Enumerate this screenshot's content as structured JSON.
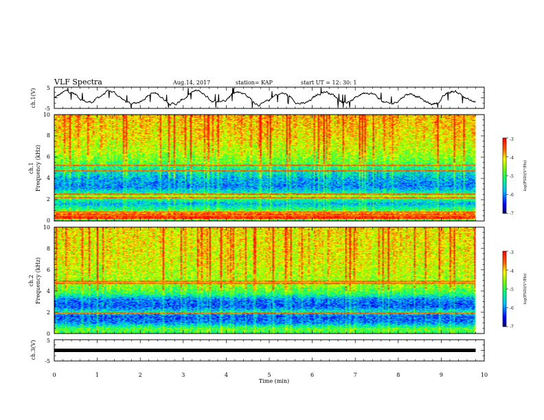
{
  "header": {
    "title": "VLF Spectra",
    "date": "Aug.14, 2017",
    "station": "station= KAP",
    "start": "start UT =  12: 30: 1"
  },
  "chart_data": [
    {
      "type": "line",
      "panel": "ch1-waveform",
      "ylabel": "ch.1(V)",
      "ylim": [
        -5,
        5
      ],
      "yticks": [
        "5",
        "-5"
      ],
      "xlim": [
        0,
        10
      ],
      "series": [
        {
          "x_range": [
            0,
            9.8
          ],
          "approx_level_V": [
            -1.5,
            1.5
          ]
        }
      ]
    },
    {
      "type": "heatmap",
      "panel": "ch1-spectrogram",
      "ylabel_line1": "ch.1",
      "ylabel_line2": "Frequency (kHz)",
      "ylim": [
        0,
        10
      ],
      "yticks": [
        "0",
        "2",
        "4",
        "6",
        "8",
        "10"
      ],
      "xlim": [
        0,
        10
      ],
      "data_x_range": [
        0,
        9.8
      ],
      "colorbar": {
        "label": "log(PSD)(V²/Hz)",
        "ticks": [
          "-3",
          "-4",
          "-5",
          "-6",
          "-7"
        ],
        "range": [
          -7,
          -3
        ]
      },
      "frequency_profile_logPSD": [
        {
          "f": 0.0,
          "v": -5.8
        },
        {
          "f": 0.2,
          "v": -3.2
        },
        {
          "f": 0.6,
          "v": -3.4
        },
        {
          "f": 1.0,
          "v": -5.0
        },
        {
          "f": 1.6,
          "v": -5.8
        },
        {
          "f": 2.0,
          "v": -5.2
        },
        {
          "f": 2.3,
          "v": -4.4
        },
        {
          "f": 2.6,
          "v": -5.3
        },
        {
          "f": 3.2,
          "v": -6.0
        },
        {
          "f": 4.0,
          "v": -5.8
        },
        {
          "f": 5.0,
          "v": -5.2
        },
        {
          "f": 5.5,
          "v": -4.8
        },
        {
          "f": 6.5,
          "v": -4.4
        },
        {
          "f": 8.0,
          "v": -4.1
        },
        {
          "f": 10.0,
          "v": -3.9
        }
      ],
      "lines_kHz": [
        0.5,
        0.8,
        2.2,
        2.5,
        4.7,
        5.2
      ]
    },
    {
      "type": "heatmap",
      "panel": "ch2-spectrogram",
      "ylabel_line1": "ch.2",
      "ylabel_line2": "Frequency (kHz)",
      "ylim": [
        0,
        10
      ],
      "yticks": [
        "0",
        "2",
        "4",
        "6",
        "8",
        "10"
      ],
      "xlim": [
        0,
        10
      ],
      "data_x_range": [
        0,
        9.8
      ],
      "colorbar": {
        "label": "log(PSD)(V²/Hz)",
        "ticks": [
          "-3",
          "-4",
          "-5",
          "-6",
          "-7"
        ],
        "range": [
          -7,
          -3
        ]
      },
      "frequency_profile_logPSD": [
        {
          "f": 0.0,
          "v": -5.0
        },
        {
          "f": 0.4,
          "v": -4.8
        },
        {
          "f": 1.0,
          "v": -6.0
        },
        {
          "f": 1.6,
          "v": -6.2
        },
        {
          "f": 2.0,
          "v": -5.4
        },
        {
          "f": 2.5,
          "v": -6.2
        },
        {
          "f": 3.2,
          "v": -6.0
        },
        {
          "f": 3.8,
          "v": -5.0
        },
        {
          "f": 4.5,
          "v": -4.6
        },
        {
          "f": 5.5,
          "v": -4.4
        },
        {
          "f": 7.0,
          "v": -4.2
        },
        {
          "f": 10.0,
          "v": -4.1
        }
      ],
      "lines_kHz": [
        1.9,
        4.7,
        4.9
      ]
    },
    {
      "type": "line",
      "panel": "ch3-waveform",
      "ylabel": "ch.3(V)",
      "ylim": [
        -5,
        5
      ],
      "yticks": [
        "5",
        "-5"
      ],
      "xlim": [
        0,
        10
      ],
      "xticks": [
        "0",
        "1",
        "2",
        "3",
        "4",
        "5",
        "6",
        "7",
        "8",
        "9",
        "10"
      ],
      "xlabel": "Time (min)",
      "series": [
        {
          "x_range": [
            0,
            9.8
          ],
          "constant_V": 0
        }
      ]
    }
  ]
}
